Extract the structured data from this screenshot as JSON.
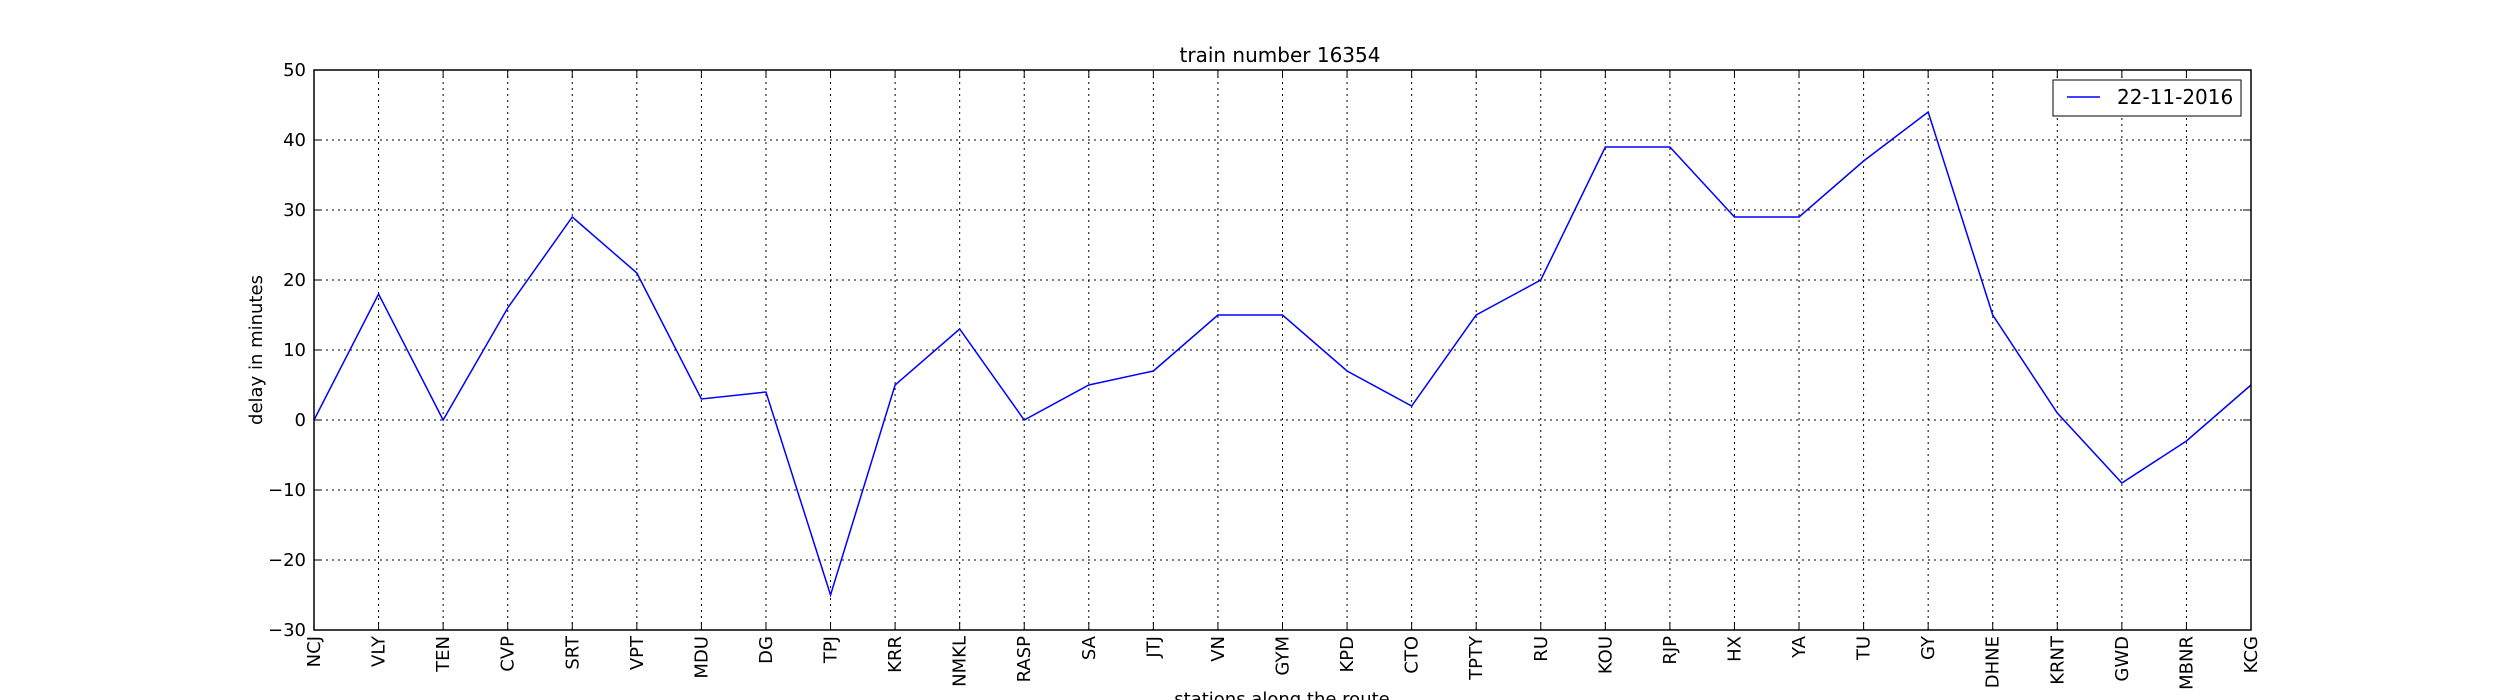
{
  "chart_data": {
    "type": "line",
    "title": "train number 16354",
    "xlabel": "stations along the route",
    "ylabel": "delay in minutes",
    "ylim": [
      -30,
      50
    ],
    "yticks": [
      -30,
      -20,
      -10,
      0,
      10,
      20,
      30,
      40,
      50
    ],
    "grid": true,
    "legend_position": "top-right",
    "categories": [
      "NCJ",
      "VLY",
      "TEN",
      "CVP",
      "SRT",
      "VPT",
      "MDU",
      "DG",
      "TPJ",
      "KRR",
      "NMKL",
      "RASP",
      "SA",
      "JTJ",
      "VN",
      "GYM",
      "KPD",
      "CTO",
      "TPTY",
      "RU",
      "KOU",
      "RJP",
      "HX",
      "YA",
      "TU",
      "GY",
      "DHNE",
      "KRNT",
      "GWD",
      "MBNR",
      "KCG"
    ],
    "series": [
      {
        "name": "22-11-2016",
        "color": "#0000ff",
        "values": [
          0,
          18,
          0,
          16,
          29,
          21,
          3,
          4,
          -25,
          5,
          13,
          0,
          5,
          7,
          15,
          15,
          7,
          2,
          15,
          20,
          39,
          39,
          29,
          29,
          37,
          44,
          15,
          1,
          -9,
          -3,
          5
        ]
      }
    ]
  }
}
